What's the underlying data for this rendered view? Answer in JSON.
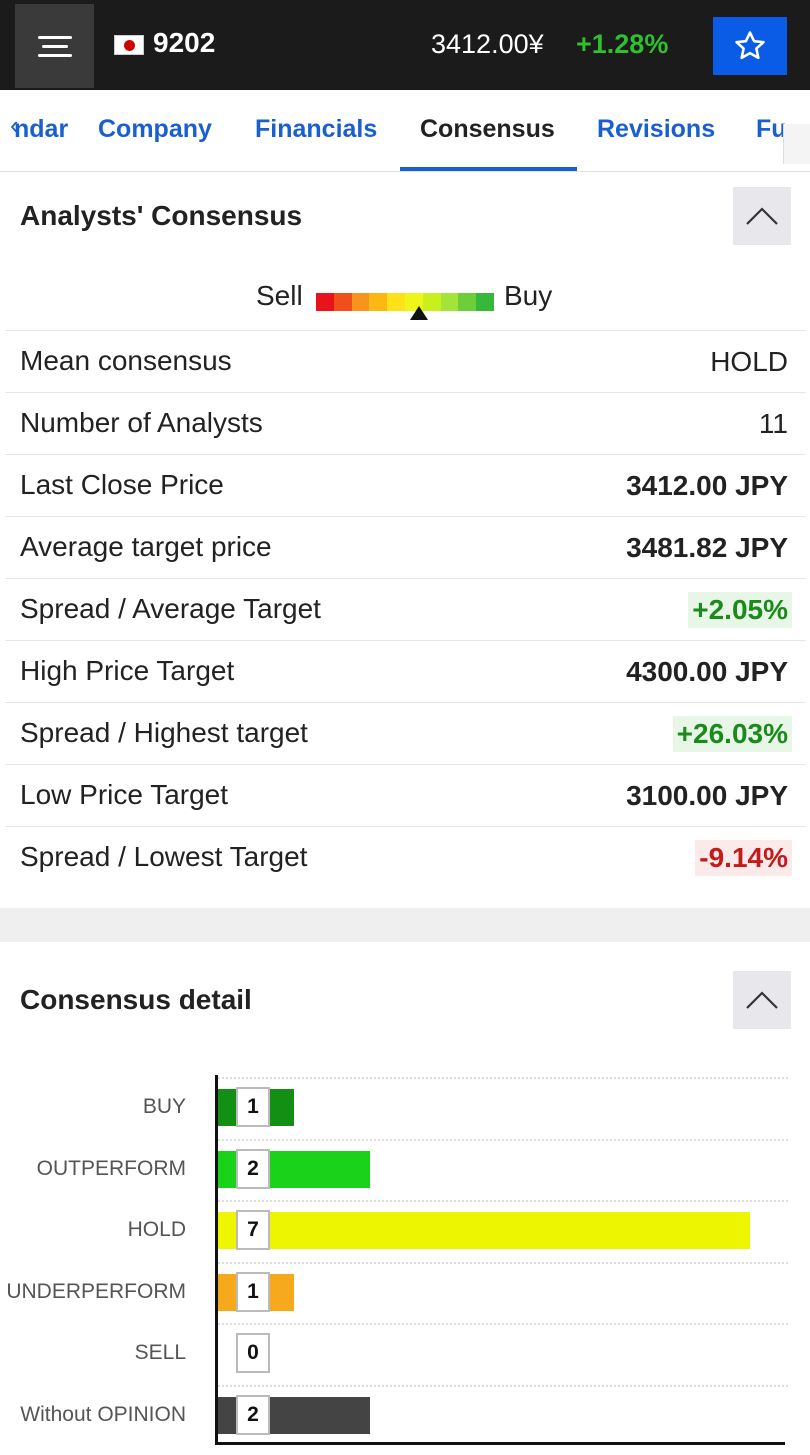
{
  "header": {
    "ticker": "9202",
    "flag_icon": "japan-flag-icon",
    "price": "3412.00¥",
    "change": "+1.28%",
    "change_color": "#2fbf2f",
    "menu_icon": "hamburger-menu-icon",
    "favorite_icon": "star-icon",
    "favorite_bg": "#0a5ce6"
  },
  "tabs": {
    "items": [
      {
        "label": "ndar"
      },
      {
        "label": "Company"
      },
      {
        "label": "Financials"
      },
      {
        "label": "Consensus"
      },
      {
        "label": "Revisions"
      },
      {
        "label": "Fu"
      }
    ],
    "active": "Consensus"
  },
  "consensus": {
    "title": "Analysts' Consensus",
    "gauge": {
      "sell_label": "Sell",
      "buy_label": "Buy",
      "colors": [
        "#e8141b",
        "#f04e1b",
        "#f7931e",
        "#fbb812",
        "#ffe11a",
        "#eef619",
        "#c9ef1c",
        "#a3e33a",
        "#6dce3c",
        "#37b83a"
      ],
      "level": 0.55
    },
    "rows": [
      {
        "label": "Mean consensus",
        "value": "HOLD",
        "style": "plain"
      },
      {
        "label": "Number of Analysts",
        "value": "11",
        "style": "plain"
      },
      {
        "label": "Last Close Price",
        "value": "3412.00 JPY",
        "style": "bold"
      },
      {
        "label": "Average target price",
        "value": "3481.82 JPY",
        "style": "bold"
      },
      {
        "label": "Spread / Average Target",
        "value": "+2.05%",
        "style": "pos"
      },
      {
        "label": "High Price Target",
        "value": "4300.00 JPY",
        "style": "bold"
      },
      {
        "label": "Spread / Highest target",
        "value": "+26.03%",
        "style": "pos"
      },
      {
        "label": "Low Price Target",
        "value": "3100.00 JPY",
        "style": "bold"
      },
      {
        "label": "Spread / Lowest Target",
        "value": "-9.14%",
        "style": "neg"
      }
    ]
  },
  "detail": {
    "title": "Consensus detail",
    "chart_data": {
      "type": "bar",
      "orientation": "horizontal",
      "categories": [
        "BUY",
        "OUTPERFORM",
        "HOLD",
        "UNDERPERFORM",
        "SELL",
        "Without OPINION"
      ],
      "values": [
        1,
        2,
        7,
        1,
        0,
        2
      ],
      "colors": [
        "#138f13",
        "#19d219",
        "#eef500",
        "#f7a91e",
        "#cccccc",
        "#444444"
      ],
      "xlim": [
        0,
        7.5
      ],
      "grid": true,
      "data_labels": true
    }
  }
}
